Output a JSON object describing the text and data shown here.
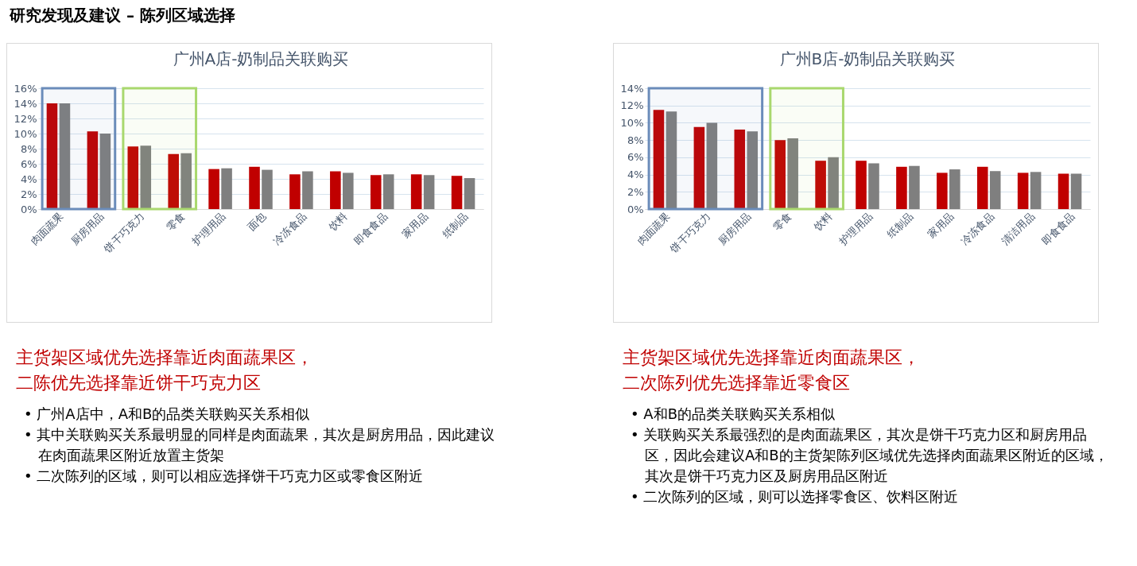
{
  "chart_data": [
    {
      "type": "bar",
      "title": "广州A店-奶制品关联购买",
      "categories": [
        "肉面蔬果",
        "厨房用品",
        "饼干巧克力",
        "零食",
        "护理用品",
        "面包",
        "冷冻食品",
        "饮料",
        "即食食品",
        "家用品",
        "纸制品"
      ],
      "series": [
        {
          "color": "#c00000",
          "values": [
            14.0,
            10.3,
            8.3,
            7.3,
            5.3,
            5.6,
            4.6,
            5.0,
            4.5,
            4.6,
            4.4
          ]
        },
        {
          "color": "#7f7f7f",
          "values": [
            14.0,
            10.0,
            8.4,
            7.4,
            5.4,
            5.2,
            5.0,
            4.8,
            4.6,
            4.5,
            4.1
          ]
        }
      ],
      "ylim": [
        0,
        16
      ],
      "yticks": [
        {
          "value": 0,
          "label": "0%"
        },
        {
          "value": 2,
          "label": "2%"
        },
        {
          "value": 4,
          "label": "4%"
        },
        {
          "value": 6,
          "label": "6%"
        },
        {
          "value": 8,
          "label": "8%"
        },
        {
          "value": 10,
          "label": "10%"
        },
        {
          "value": 12,
          "label": "12%"
        },
        {
          "value": 14,
          "label": "14%"
        },
        {
          "value": 16,
          "label": "16%"
        }
      ],
      "grid": "y",
      "bands": [
        {
          "axis": "x",
          "from": "肉面蔬果",
          "to": "厨房用品",
          "color": "#6b8cba"
        },
        {
          "axis": "x",
          "from": "饼干巧克力",
          "to": "零食",
          "color": "#a9d86e"
        }
      ],
      "annotations": [
        "研究发现及建议 – 陈列区域选择",
        "主货架区域优先选择靠近肉面蔬果区，",
        "二陈优先选择靠近饼干巧克力区",
        "• 广州A店中，A和B的品类关联购买关系相似",
        "• 其中关联购买关系最明显的同样是肉面蔬果，其次是厨房用品，因此建议在肉面蔬果区附近放置主货架",
        "• 二次陈列的区域，则可以相应选择饼干巧克力区或零食区附近"
      ]
    },
    {
      "type": "bar",
      "title": "广州B店-奶制品关联购买",
      "categories": [
        "肉面蔬果",
        "饼干巧克力",
        "厨房用品",
        "零食",
        "饮料",
        "护理用品",
        "纸制品",
        "家用品",
        "冷冻食品",
        "清洁用品",
        "即食食品"
      ],
      "series": [
        {
          "color": "#c00000",
          "values": [
            11.5,
            9.5,
            9.2,
            8.0,
            5.6,
            5.6,
            4.9,
            4.2,
            4.9,
            4.2,
            4.1
          ]
        },
        {
          "color": "#7f7f7f",
          "values": [
            11.3,
            10.0,
            9.0,
            8.2,
            6.0,
            5.3,
            5.0,
            4.6,
            4.4,
            4.3,
            4.1
          ]
        }
      ],
      "ylim": [
        0,
        14
      ],
      "yticks": [
        {
          "value": 0,
          "label": "0%"
        },
        {
          "value": 2,
          "label": "2%"
        },
        {
          "value": 4,
          "label": "4%"
        },
        {
          "value": 6,
          "label": "6%"
        },
        {
          "value": 8,
          "label": "8%"
        },
        {
          "value": 10,
          "label": "10%"
        },
        {
          "value": 12,
          "label": "12%"
        },
        {
          "value": 14,
          "label": "14%"
        }
      ],
      "grid": "y",
      "bands": [
        {
          "axis": "x",
          "from": "肉面蔬果",
          "to": "厨房用品",
          "color": "#6b8cba"
        },
        {
          "axis": "x",
          "from": "零食",
          "to": "饮料",
          "color": "#a9d86e"
        }
      ],
      "annotations": [
        "主货架区域优先选择靠近肉面蔬果区，",
        "二次陈列优先选择靠近零食区",
        "• A和B的品类关联购买关系相似",
        "• 关联购买关系最强烈的是肉面蔬果区，其次是饼干巧克力区和厨房用品区，因此会建议A和B的主货架陈列区域优先选择肉面蔬果区附近的区域，其次是饼干巧克力区及厨房用品区附近",
        "• 二次陈列的区域，则可以选择零食区、饮料区附近"
      ]
    }
  ]
}
